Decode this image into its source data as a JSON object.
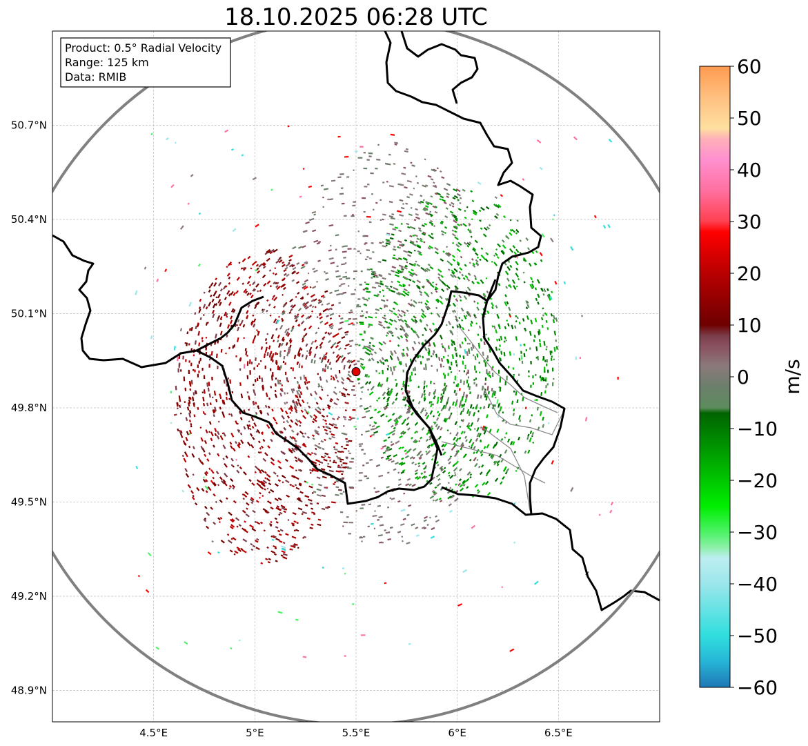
{
  "title": "18.10.2025 06:28 UTC",
  "info": {
    "product": "Product: 0.5° Radial Velocity",
    "range": "Range: 125 km",
    "data": "Data: RMIB"
  },
  "map": {
    "lon_range": [
      4.0,
      7.0
    ],
    "lat_range": [
      48.8,
      51.0
    ],
    "radar_site": {
      "lon": 5.5,
      "lat": 49.915
    },
    "radar_color": "#e00000",
    "range_ring_color": "#808080",
    "x_ticks": [
      {
        "value": 4.5,
        "label": "4.5°E"
      },
      {
        "value": 5.0,
        "label": "5°E"
      },
      {
        "value": 5.5,
        "label": "5.5°E"
      },
      {
        "value": 6.0,
        "label": "6°E"
      },
      {
        "value": 6.5,
        "label": "6.5°E"
      }
    ],
    "y_ticks": [
      {
        "value": 48.9,
        "label": "48.9°N"
      },
      {
        "value": 49.2,
        "label": "49.2°N"
      },
      {
        "value": 49.5,
        "label": "49.5°N"
      },
      {
        "value": 49.8,
        "label": "49.8°N"
      },
      {
        "value": 50.1,
        "label": "50.1°N"
      },
      {
        "value": 50.4,
        "label": "50.4°N"
      },
      {
        "value": 50.7,
        "label": "50.7°N"
      }
    ]
  },
  "colorbar": {
    "label": "m/s",
    "min": -60,
    "max": 60,
    "ticks": [
      {
        "value": 60,
        "label": "60"
      },
      {
        "value": 50,
        "label": "50"
      },
      {
        "value": 40,
        "label": "40"
      },
      {
        "value": 30,
        "label": "30"
      },
      {
        "value": 20,
        "label": "20"
      },
      {
        "value": 10,
        "label": "10"
      },
      {
        "value": 0,
        "label": "0"
      },
      {
        "value": -10,
        "label": "−10"
      },
      {
        "value": -20,
        "label": "−20"
      },
      {
        "value": -30,
        "label": "−30"
      },
      {
        "value": -40,
        "label": "−40"
      },
      {
        "value": -50,
        "label": "−50"
      },
      {
        "value": -60,
        "label": "−60"
      }
    ],
    "stops": [
      {
        "value": -60,
        "color": "#1f77b4"
      },
      {
        "value": -55,
        "color": "#26b5d6"
      },
      {
        "value": -50,
        "color": "#30dede"
      },
      {
        "value": -40,
        "color": "#9be6ea"
      },
      {
        "value": -35,
        "color": "#bdeef2"
      },
      {
        "value": -33,
        "color": "#8ef0a8"
      },
      {
        "value": -30,
        "color": "#4cf266"
      },
      {
        "value": -25,
        "color": "#00ee00"
      },
      {
        "value": -15,
        "color": "#00a000"
      },
      {
        "value": -7,
        "color": "#006400"
      },
      {
        "value": -6,
        "color": "#5d8d5d"
      },
      {
        "value": -2,
        "color": "#6b7f6b"
      },
      {
        "value": 2,
        "color": "#8a7a7a"
      },
      {
        "value": 6,
        "color": "#8a5060"
      },
      {
        "value": 8,
        "color": "#7a3c48"
      },
      {
        "value": 10,
        "color": "#6e0000"
      },
      {
        "value": 20,
        "color": "#b80000"
      },
      {
        "value": 28,
        "color": "#ff0000"
      },
      {
        "value": 30,
        "color": "#ff4050"
      },
      {
        "value": 36,
        "color": "#ff70a0"
      },
      {
        "value": 42,
        "color": "#ff90d0"
      },
      {
        "value": 46,
        "color": "#ffb0b8"
      },
      {
        "value": 48,
        "color": "#ffe0a0"
      },
      {
        "value": 54,
        "color": "#ffc080"
      },
      {
        "value": 60,
        "color": "#ff9a50"
      }
    ]
  },
  "echo_regions": [
    {
      "name": "outbound-west",
      "lon": [
        4.6,
        5.5
      ],
      "lat": [
        49.3,
        50.3
      ],
      "colors": [
        "#6e0000",
        "#8a0000",
        "#a40000",
        "#c00000",
        "#7a3c48"
      ],
      "count": 1400
    },
    {
      "name": "inbound-east",
      "lon": [
        5.5,
        6.5
      ],
      "lat": [
        49.5,
        50.5
      ],
      "colors": [
        "#00a000",
        "#008800",
        "#00c400",
        "#006400",
        "#5d8d5d"
      ],
      "count": 1400
    },
    {
      "name": "near-zero",
      "lon": [
        5.1,
        6.2
      ],
      "lat": [
        49.35,
        50.65
      ],
      "colors": [
        "#8a7a7a",
        "#6b7f6b",
        "#8a5060",
        "#7f7070"
      ],
      "count": 1100
    },
    {
      "name": "scattered",
      "lon": [
        4.4,
        6.8
      ],
      "lat": [
        49.0,
        50.7
      ],
      "colors": [
        "#ff0000",
        "#30dede",
        "#9be6ea",
        "#4cf266",
        "#ff70a0",
        "#8a7a7a"
      ],
      "count": 160
    }
  ]
}
